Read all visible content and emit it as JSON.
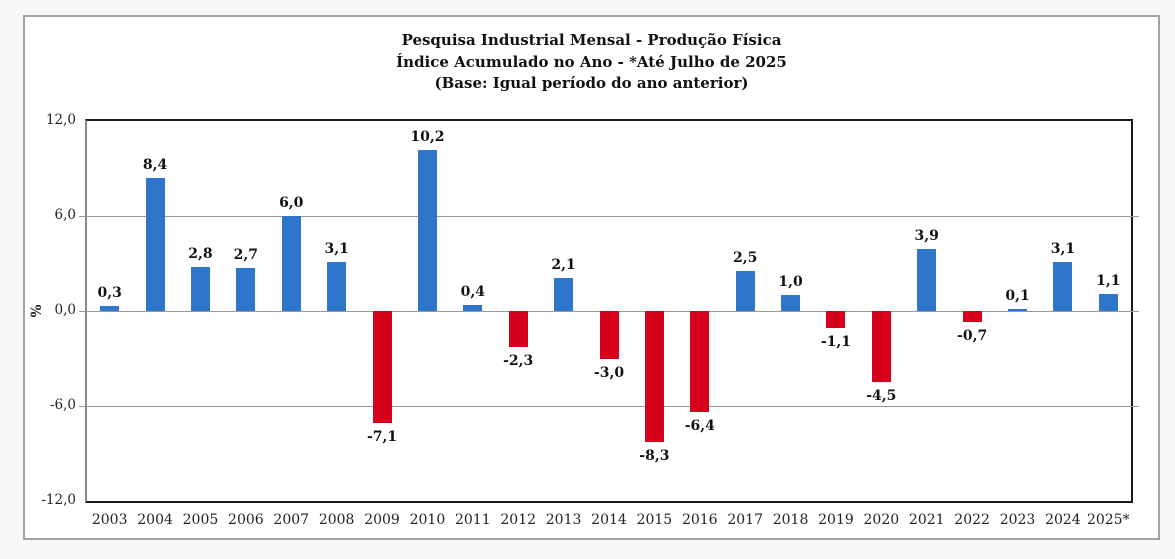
{
  "title": {
    "line1": "Pesquisa Industrial Mensal - Produção Física",
    "line2": "Índice Acumulado no Ano - *Até Julho de 2025",
    "line3": "(Base: Igual período do ano anterior)"
  },
  "chart_data": {
    "type": "bar",
    "categories": [
      "2003",
      "2004",
      "2005",
      "2006",
      "2007",
      "2008",
      "2009",
      "2010",
      "2011",
      "2012",
      "2013",
      "2014",
      "2015",
      "2016",
      "2017",
      "2018",
      "2019",
      "2020",
      "2021",
      "2022",
      "2023",
      "2024",
      "2025*"
    ],
    "values": [
      0.3,
      8.4,
      2.8,
      2.7,
      6.0,
      3.1,
      -7.1,
      10.2,
      0.4,
      -2.3,
      2.1,
      -3.0,
      -8.3,
      -6.4,
      2.5,
      1.0,
      -1.1,
      -4.5,
      3.9,
      -0.7,
      0.1,
      3.1,
      1.1
    ],
    "value_labels": [
      "0,3",
      "8,4",
      "2,8",
      "2,7",
      "6,0",
      "3,1",
      "-7,1",
      "10,2",
      "0,4",
      "-2,3",
      "2,1",
      "-3,0",
      "-8,3",
      "-6,4",
      "2,5",
      "1,0",
      "-1,1",
      "-4,5",
      "3,9",
      "-0,7",
      "0,1",
      "3,1",
      "1,1"
    ],
    "ylabel": "%",
    "ylim": [
      -12,
      12
    ],
    "yticks": [
      12,
      6,
      0,
      -6,
      -12
    ],
    "ytick_labels": [
      "12,0",
      "6,0",
      "0,0",
      "-6,0",
      "-12,0"
    ],
    "grid": true,
    "legend": "none",
    "colors": {
      "positive_bar": "#2E75CC",
      "negative_bar": "#D6001C",
      "gridline": "#999999",
      "plot_border_dark": "#1a1a1a",
      "plot_border_gray": "#8a8a8a",
      "frame_border": "#a3a3a3",
      "page_background": "#f7f7f7",
      "chart_background": "#ffffff",
      "text": "#111111"
    }
  }
}
